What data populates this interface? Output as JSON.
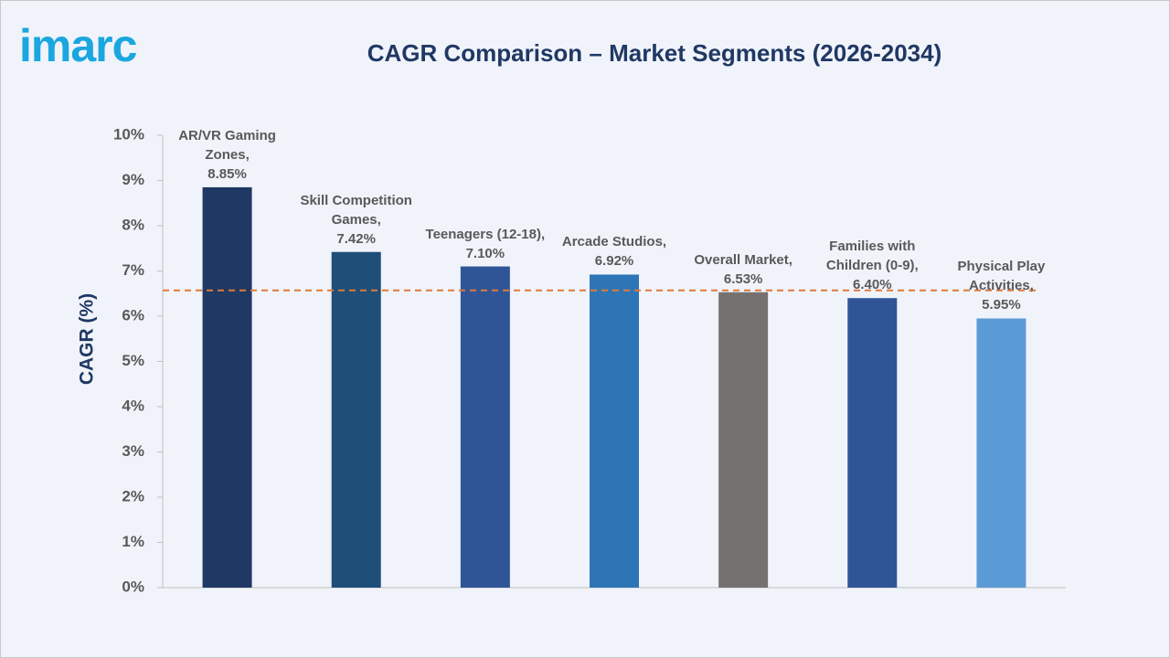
{
  "logo": "imarc",
  "chart_data": {
    "type": "bar",
    "title": "CAGR Comparison – Market Segments (2026-2034)",
    "y_label": "CAGR (%)",
    "categories": [
      "AR/VR Gaming Zones,",
      "Skill Competition Games,",
      "Teenagers (12-18),",
      "Arcade Studios,",
      "Overall Market,",
      "Families with Children (0-9),",
      "Physical Play Activities,"
    ],
    "values": [
      8.85,
      7.42,
      7.1,
      6.92,
      6.53,
      6.4,
      5.95
    ],
    "value_labels": [
      "8.85%",
      "7.42%",
      "7.10%",
      "6.92%",
      "6.53%",
      "6.40%",
      "5.95%"
    ],
    "colors": [
      "#1f3864",
      "#1f4e79",
      "#2f5597",
      "#2e75b6",
      "#767171",
      "#2f5597",
      "#5b9bd5"
    ],
    "ylim": [
      0,
      10
    ],
    "yticks": [
      {
        "value": 0,
        "label": "0%"
      },
      {
        "value": 1,
        "label": "1%"
      },
      {
        "value": 2,
        "label": "2%"
      },
      {
        "value": 3,
        "label": "3%"
      },
      {
        "value": 4,
        "label": "4%"
      },
      {
        "value": 5,
        "label": "5%"
      },
      {
        "value": 6,
        "label": "6%"
      },
      {
        "value": 7,
        "label": "7%"
      },
      {
        "value": 8,
        "label": "8%"
      },
      {
        "value": 9,
        "label": "9%"
      },
      {
        "value": 10,
        "label": "10%"
      }
    ],
    "reference_line": {
      "value": 6.57,
      "color": "#e07b39"
    }
  }
}
